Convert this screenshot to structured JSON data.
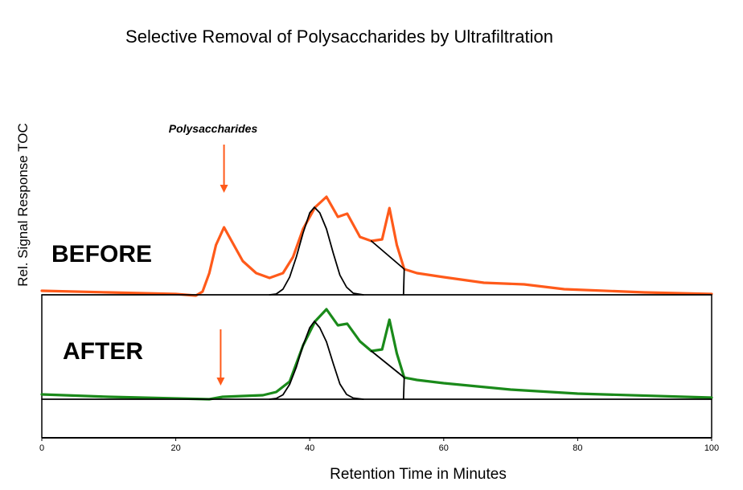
{
  "chart_data": {
    "type": "line",
    "title": "Selective Removal of Polysaccharides by Ultrafiltration",
    "xlabel": "Retention Time in Minutes",
    "ylabel": "Rel. Signal Response TOC",
    "xlim": [
      0,
      100
    ],
    "ylim": [
      0,
      100
    ],
    "xticks": [
      0,
      20,
      40,
      60,
      80,
      100
    ],
    "xtick_labels": [
      "0",
      "20",
      "40",
      "60",
      "80",
      "100"
    ],
    "grid": false,
    "annotations": {
      "polysaccharides": "Polysaccharides",
      "before": "BEFORE",
      "after": "AFTER"
    },
    "arrows": [
      {
        "x": 27.2,
        "y_from": 73,
        "y_to": 61
      },
      {
        "x": 26.7,
        "y_from": 27,
        "y_to": 13
      }
    ],
    "colors": {
      "before": "#ff5a1a",
      "after": "#1a8a1a",
      "fit": "#000000",
      "arrow": "#ff5a1a"
    },
    "series": [
      {
        "id": "before",
        "color": "#ff5a1a",
        "points": [
          [
            0,
            36.6
          ],
          [
            10,
            36.2
          ],
          [
            20,
            35.8
          ],
          [
            23,
            35.4
          ],
          [
            24,
            36.4
          ],
          [
            25,
            41
          ],
          [
            26,
            48
          ],
          [
            27.2,
            52.4
          ],
          [
            28.5,
            48.5
          ],
          [
            30,
            44
          ],
          [
            32,
            41
          ],
          [
            34,
            39.8
          ],
          [
            36,
            41
          ],
          [
            37.5,
            45
          ],
          [
            39,
            52
          ],
          [
            40.8,
            57.4
          ],
          [
            42.5,
            60
          ],
          [
            44.2,
            55
          ],
          [
            45.6,
            55.8
          ],
          [
            47.5,
            50
          ],
          [
            49.2,
            49
          ],
          [
            50.8,
            49.4
          ],
          [
            51.9,
            57.2
          ],
          [
            53,
            48
          ],
          [
            54.1,
            42
          ],
          [
            56,
            41
          ],
          [
            60,
            40
          ],
          [
            66,
            38.6
          ],
          [
            72,
            38.2
          ],
          [
            78,
            37
          ],
          [
            90,
            36.2
          ],
          [
            100,
            35.8
          ]
        ]
      },
      {
        "id": "after",
        "color": "#1a8a1a",
        "points": [
          [
            0,
            10.8
          ],
          [
            10,
            10.2
          ],
          [
            25,
            9.6
          ],
          [
            27,
            10.2
          ],
          [
            33,
            10.6
          ],
          [
            35,
            11.4
          ],
          [
            37,
            14
          ],
          [
            39,
            23
          ],
          [
            40.8,
            29
          ],
          [
            42.5,
            32
          ],
          [
            44.2,
            28
          ],
          [
            45.6,
            28.4
          ],
          [
            47.5,
            24
          ],
          [
            49.2,
            21.6
          ],
          [
            50.8,
            22
          ],
          [
            51.9,
            29.4
          ],
          [
            53,
            21
          ],
          [
            54.1,
            15
          ],
          [
            56,
            14.4
          ],
          [
            60,
            13.6
          ],
          [
            70,
            12
          ],
          [
            80,
            11
          ],
          [
            100,
            10
          ]
        ]
      },
      {
        "id": "before-baseline",
        "color": "#000000",
        "points": [
          [
            0,
            35.6
          ],
          [
            100,
            35.6
          ]
        ]
      },
      {
        "id": "before-fit",
        "color": "#000000",
        "points": [
          [
            34,
            35.6
          ],
          [
            35,
            35.8
          ],
          [
            36,
            37
          ],
          [
            37,
            40
          ],
          [
            38,
            45
          ],
          [
            39,
            51
          ],
          [
            40,
            56
          ],
          [
            40.7,
            57.4
          ],
          [
            41.5,
            56
          ],
          [
            42.5,
            52
          ],
          [
            43.5,
            46
          ],
          [
            44.5,
            40.5
          ],
          [
            45.5,
            37.5
          ],
          [
            46.5,
            36
          ],
          [
            48,
            35.6
          ]
        ]
      },
      {
        "id": "before-drop",
        "color": "#000000",
        "points": [
          [
            49.2,
            49
          ],
          [
            54.1,
            42
          ],
          [
            54,
            35.6
          ]
        ]
      },
      {
        "id": "after-baseline",
        "color": "#000000",
        "points": [
          [
            0,
            9.6
          ],
          [
            100,
            9.6
          ]
        ]
      },
      {
        "id": "after-fit",
        "color": "#000000",
        "points": [
          [
            34,
            9.6
          ],
          [
            35,
            9.8
          ],
          [
            36,
            10.7
          ],
          [
            37,
            13.3
          ],
          [
            38,
            17.6
          ],
          [
            39,
            23
          ],
          [
            40,
            27.4
          ],
          [
            40.7,
            29
          ],
          [
            41.5,
            27.4
          ],
          [
            42.5,
            23.9
          ],
          [
            43.5,
            18.5
          ],
          [
            44.5,
            13.4
          ],
          [
            45.5,
            10.8
          ],
          [
            46.5,
            9.9
          ],
          [
            48,
            9.6
          ]
        ]
      },
      {
        "id": "after-drop",
        "color": "#000000",
        "points": [
          [
            49.2,
            21.6
          ],
          [
            54.1,
            15
          ],
          [
            54,
            9.6
          ]
        ]
      }
    ]
  }
}
